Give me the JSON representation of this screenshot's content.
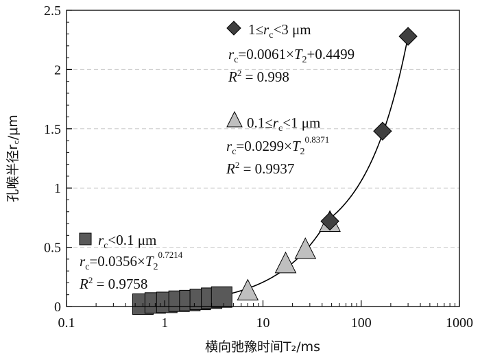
{
  "chart_data": {
    "type": "scatter",
    "xlabel": "横向弛豫时间T₂/ms",
    "ylabel": "孔喉半径r꜀/μm",
    "x_scale": "log",
    "xlim": [
      0.1,
      1000
    ],
    "ylim": [
      0,
      2.5
    ],
    "x_ticks": [
      "0.1",
      "1",
      "10",
      "100",
      "1000"
    ],
    "y_ticks": [
      "0",
      "0.5",
      "1",
      "1.5",
      "2",
      "2.5"
    ],
    "grid": "horizontal dashed",
    "series": [
      {
        "marker": "square",
        "color": "#595959",
        "points": [
          [
            0.6,
            0.02
          ],
          [
            0.8,
            0.03
          ],
          [
            1.05,
            0.035
          ],
          [
            1.4,
            0.045
          ],
          [
            1.8,
            0.05
          ],
          [
            2.3,
            0.06
          ],
          [
            3.0,
            0.07
          ],
          [
            3.8,
            0.08
          ]
        ]
      },
      {
        "marker": "triangle",
        "color": "#bfbfbf",
        "points": [
          [
            7,
            0.12
          ],
          [
            17,
            0.35
          ],
          [
            27,
            0.47
          ],
          [
            48,
            0.7
          ]
        ]
      },
      {
        "marker": "diamond",
        "color": "#404040",
        "points": [
          [
            48,
            0.72
          ],
          [
            165,
            1.48
          ],
          [
            300,
            2.28
          ]
        ]
      }
    ],
    "fit_curves": [
      {
        "domain": [
          0.6,
          4.5
        ],
        "a": 0.0356,
        "b": 0.7214,
        "form": "power"
      },
      {
        "domain": [
          4.5,
          48
        ],
        "a": 0.0299,
        "b": 0.8371,
        "form": "power"
      },
      {
        "domain": [
          48,
          300
        ],
        "m": 0.0061,
        "c": 0.4499,
        "form": "linear"
      }
    ],
    "annotations": [
      {
        "range_pre": "1≤",
        "range_var": "r",
        "range_sub": "c",
        "range_post": "<3 μm",
        "eq_var": "r",
        "eq_sub": "c",
        "eq_mid": "=0.0061×",
        "eq_T": "T",
        "eq_T_sub": "2",
        "eq_tail": "+0.4499",
        "eq_exp": "",
        "r2_label": "R",
        "r2_sup": "2",
        "r2_value": " = 0.998"
      },
      {
        "range_pre": "0.1≤",
        "range_var": "r",
        "range_sub": "c",
        "range_post": "<1 μm",
        "eq_var": "r",
        "eq_sub": "c",
        "eq_mid": "=0.0299×",
        "eq_T": "T",
        "eq_T_sub": "2",
        "eq_tail": "",
        "eq_exp": "0.8371",
        "r2_label": "R",
        "r2_sup": "2",
        "r2_value": " = 0.9937"
      },
      {
        "range_pre": "",
        "range_var": "r",
        "range_sub": "c",
        "range_post": "<0.1 μm",
        "eq_var": "r",
        "eq_sub": "c",
        "eq_mid": "=0.0356×",
        "eq_T": "T",
        "eq_T_sub": "2",
        "eq_tail": "",
        "eq_exp": "0.7214",
        "r2_label": "R",
        "r2_sup": "2",
        "r2_value": " = 0.9758"
      }
    ]
  }
}
